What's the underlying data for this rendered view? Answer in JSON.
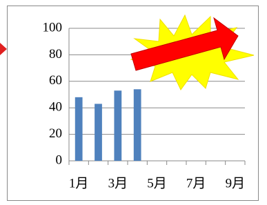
{
  "chart_data": {
    "type": "bar",
    "categories": [
      "1月",
      null,
      "3月",
      null,
      "5月",
      null,
      "7月",
      null,
      "9月"
    ],
    "values": [
      48,
      43,
      53,
      54,
      null,
      null,
      null,
      null,
      null
    ],
    "color": "#4f81bd",
    "ylim": [
      0,
      100
    ],
    "yticks": [
      0,
      20,
      40,
      60,
      80,
      100
    ],
    "grid": true
  }
}
